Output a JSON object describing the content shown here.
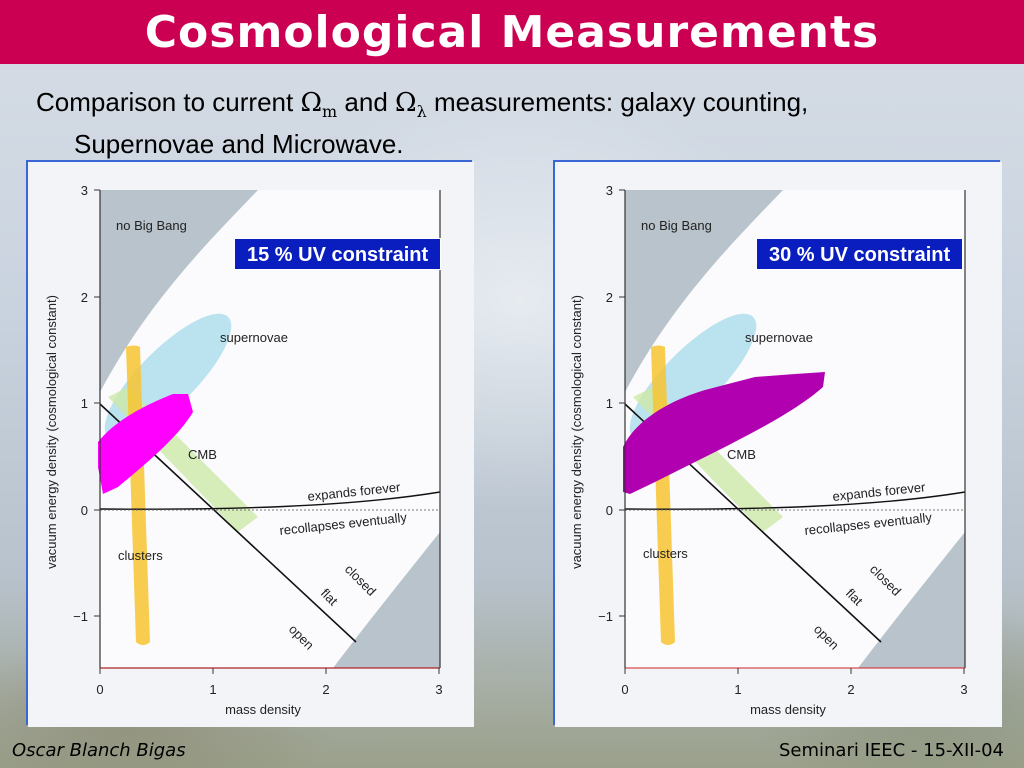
{
  "slide": {
    "title": "Cosmological Measurements",
    "intro": {
      "part1": "Comparison to current ",
      "omega": "Ω",
      "sub_m": "m",
      "part2": " and ",
      "sub_lambda": "λ",
      "part3": " measurements: galaxy counting,",
      "line2": "Supernovae and Microwave."
    },
    "footer_left": "Oscar Blanch Bigas",
    "footer_right": "Seminari IEEC - 15-XII-04"
  },
  "panels": [
    {
      "badge": "15 % UV constraint",
      "fill_color": "#ff00ff",
      "ylabel": "vacuum energy density (cosmological constant)",
      "xlabel": "mass density",
      "x_ticks": [
        "0",
        "1",
        "2",
        "3"
      ],
      "y_ticks": [
        "3",
        "2",
        "1",
        "0",
        "−1"
      ],
      "labels": {
        "no_big_bang": "no Big Bang",
        "supernovae": "supernovae",
        "cmb": "CMB",
        "clusters": "clusters",
        "expands": "expands forever",
        "recollapses": "recollapses eventually",
        "closed": "closed",
        "flat": "flat",
        "open": "open"
      }
    },
    {
      "badge": "30 % UV constraint",
      "fill_color": "#b000b0",
      "ylabel": "vacuum energy density (cosmological constant)",
      "xlabel": "mass density",
      "x_ticks": [
        "0",
        "1",
        "2",
        "3"
      ],
      "y_ticks": [
        "3",
        "2",
        "1",
        "0",
        "−1"
      ],
      "labels": {
        "no_big_bang": "no Big Bang",
        "supernovae": "supernovae",
        "cmb": "CMB",
        "clusters": "clusters",
        "expands": "expands forever",
        "recollapses": "recollapses eventually",
        "closed": "closed",
        "flat": "flat",
        "open": "open"
      }
    }
  ]
}
